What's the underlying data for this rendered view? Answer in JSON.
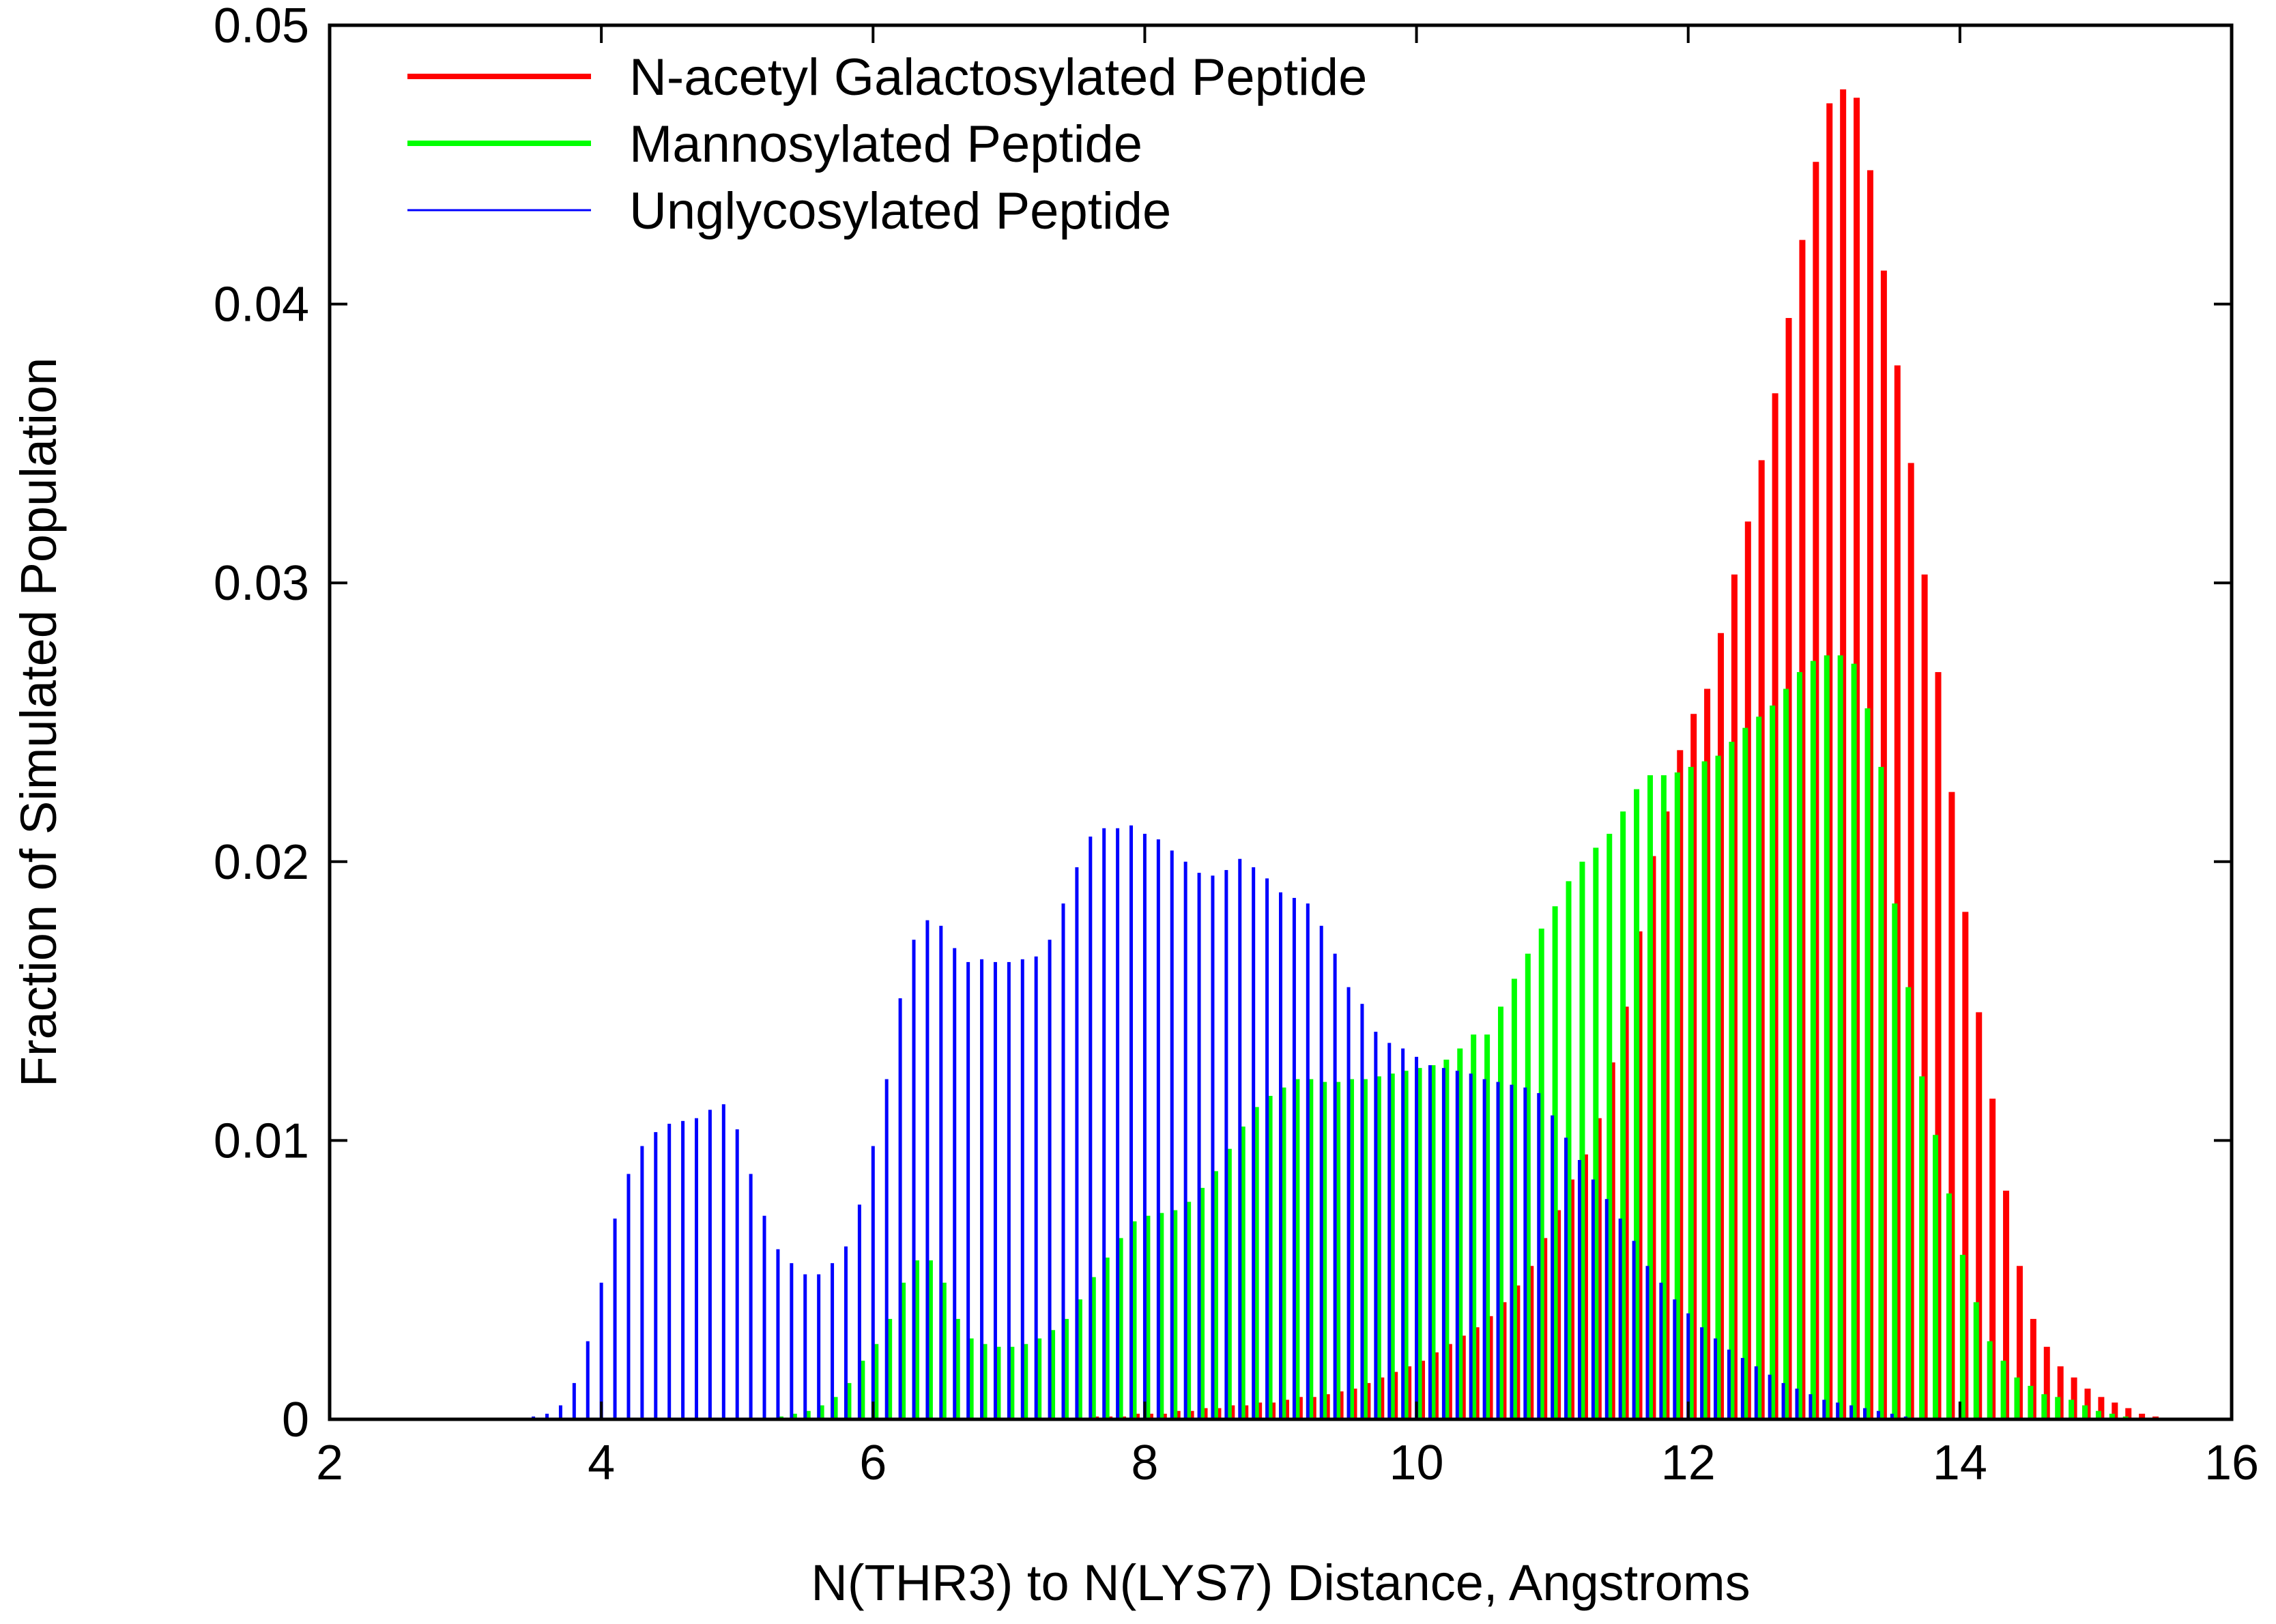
{
  "chart_data": {
    "type": "bar",
    "title": "",
    "xlabel": "N(THR3) to N(LYS7) Distance, Angstroms",
    "ylabel": "Fraction of Simulated Population",
    "xlim": [
      2,
      16
    ],
    "ylim": [
      0,
      0.05
    ],
    "xticks": [
      "2",
      "4",
      "6",
      "8",
      "10",
      "12",
      "14",
      "16"
    ],
    "yticks": [
      "0",
      "0.01",
      "0.02",
      "0.03",
      "0.04",
      "0.05"
    ],
    "grid": false,
    "legend_position": "top-left",
    "bin_width": 0.1,
    "series": [
      {
        "name": "N-acetyl Galactosylated Peptide",
        "color": "#ff0000",
        "bar_offset": 0.04,
        "x_start": 7.6,
        "values": [
          0.0001,
          0.0001,
          0.0001,
          0.0002,
          0.0002,
          0.0002,
          0.0003,
          0.0003,
          0.0004,
          0.0004,
          0.0005,
          0.0005,
          0.0006,
          0.0006,
          0.0007,
          0.0008,
          0.0008,
          0.0009,
          0.001,
          0.0011,
          0.0013,
          0.0015,
          0.0017,
          0.0019,
          0.0021,
          0.0024,
          0.0027,
          0.003,
          0.0033,
          0.0037,
          0.0042,
          0.0048,
          0.0055,
          0.0065,
          0.0075,
          0.0086,
          0.0095,
          0.0108,
          0.0128,
          0.0148,
          0.0175,
          0.0202,
          0.0218,
          0.024,
          0.0253,
          0.0262,
          0.0282,
          0.0303,
          0.0322,
          0.0344,
          0.0368,
          0.0395,
          0.0423,
          0.0451,
          0.0472,
          0.0477,
          0.0474,
          0.0448,
          0.0412,
          0.0378,
          0.0343,
          0.0303,
          0.0268,
          0.0225,
          0.0182,
          0.0146,
          0.0115,
          0.0082,
          0.0055,
          0.0036,
          0.0026,
          0.0019,
          0.0015,
          0.0011,
          0.0008,
          0.0006,
          0.0004,
          0.0002,
          0.0001
        ]
      },
      {
        "name": "Mannosylated Peptide",
        "color": "#00ff00",
        "bar_offset": 0.02,
        "x_start": 5.3,
        "values": [
          0.0001,
          0.0002,
          0.0003,
          0.0005,
          0.0008,
          0.0013,
          0.0021,
          0.0027,
          0.0036,
          0.0049,
          0.0057,
          0.0057,
          0.0049,
          0.0036,
          0.0029,
          0.0027,
          0.0026,
          0.0026,
          0.0027,
          0.0029,
          0.0032,
          0.0036,
          0.0043,
          0.0051,
          0.0058,
          0.0065,
          0.0071,
          0.0073,
          0.0074,
          0.0075,
          0.0078,
          0.0083,
          0.0089,
          0.0097,
          0.0105,
          0.0112,
          0.0116,
          0.0119,
          0.0122,
          0.0122,
          0.0121,
          0.0121,
          0.0122,
          0.0122,
          0.0123,
          0.0124,
          0.0125,
          0.0126,
          0.0127,
          0.0129,
          0.0133,
          0.0138,
          0.0138,
          0.0148,
          0.0158,
          0.0167,
          0.0176,
          0.0184,
          0.0193,
          0.02,
          0.0205,
          0.021,
          0.0218,
          0.0226,
          0.0231,
          0.0231,
          0.0232,
          0.0234,
          0.0236,
          0.0238,
          0.0243,
          0.0248,
          0.0252,
          0.0256,
          0.0262,
          0.0268,
          0.0272,
          0.0274,
          0.0274,
          0.0271,
          0.0255,
          0.0234,
          0.0185,
          0.0155,
          0.0123,
          0.0102,
          0.0081,
          0.0059,
          0.0042,
          0.0028,
          0.0021,
          0.0015,
          0.0012,
          0.0009,
          0.0008,
          0.0007,
          0.0005,
          0.0003,
          0.0002,
          0.0001
        ]
      },
      {
        "name": "Unglycosylated Peptide",
        "color": "#0000ff",
        "bar_offset": 0.0,
        "x_start": 3.5,
        "values": [
          0.0001,
          0.0002,
          0.0005,
          0.0013,
          0.0028,
          0.0049,
          0.0072,
          0.0088,
          0.0098,
          0.0103,
          0.0106,
          0.0107,
          0.0108,
          0.0111,
          0.0113,
          0.0104,
          0.0088,
          0.0073,
          0.0061,
          0.0056,
          0.0052,
          0.0052,
          0.0056,
          0.0062,
          0.0077,
          0.0098,
          0.0122,
          0.0151,
          0.0172,
          0.0179,
          0.0177,
          0.0169,
          0.0164,
          0.0165,
          0.0164,
          0.0164,
          0.0165,
          0.0166,
          0.0172,
          0.0185,
          0.0198,
          0.0209,
          0.0212,
          0.0212,
          0.0213,
          0.021,
          0.0208,
          0.0204,
          0.02,
          0.0196,
          0.0195,
          0.0197,
          0.0201,
          0.0198,
          0.0194,
          0.0189,
          0.0187,
          0.0185,
          0.0177,
          0.0167,
          0.0155,
          0.0149,
          0.0139,
          0.0135,
          0.0133,
          0.013,
          0.0127,
          0.0126,
          0.0125,
          0.0124,
          0.0122,
          0.0121,
          0.012,
          0.0119,
          0.0117,
          0.0109,
          0.0101,
          0.0093,
          0.0086,
          0.0079,
          0.0072,
          0.0064,
          0.0055,
          0.0049,
          0.0043,
          0.0038,
          0.0033,
          0.0029,
          0.0025,
          0.0022,
          0.0019,
          0.0016,
          0.0013,
          0.0011,
          0.0009,
          0.0007,
          0.0006,
          0.0005,
          0.0004,
          0.0003,
          0.0002,
          0.0001
        ]
      }
    ]
  }
}
